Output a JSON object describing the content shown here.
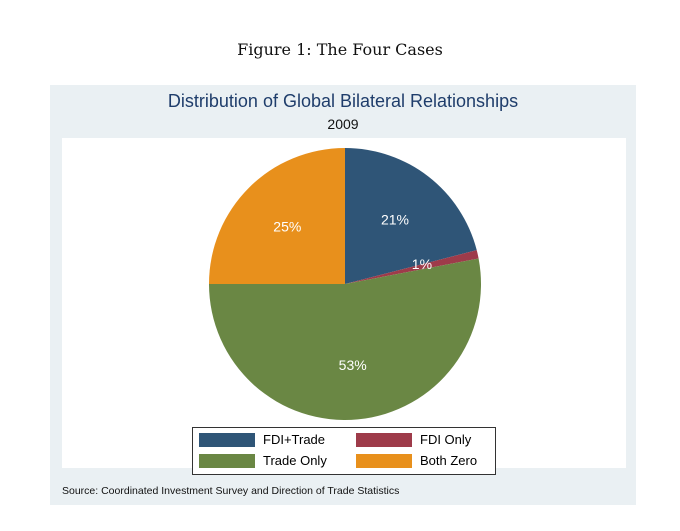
{
  "figure_caption": "Figure 1: The Four Cases",
  "chart_data": {
    "type": "pie",
    "title": "Distribution of Global Bilateral Relationships",
    "subtitle": "2009",
    "slices": [
      {
        "label": "FDI+Trade",
        "value": 21,
        "display": "21%",
        "color": "#2f5577"
      },
      {
        "label": "FDI Only",
        "value": 1,
        "display": "1%",
        "color": "#9e3b4a"
      },
      {
        "label": "Trade Only",
        "value": 53,
        "display": "53%",
        "color": "#6a8744"
      },
      {
        "label": "Both Zero",
        "value": 25,
        "display": "25%",
        "color": "#e8901c"
      }
    ],
    "start_angle_deg": 90,
    "direction": "clockwise",
    "legend_placement": "bottom",
    "note": "Source: Coordinated Investment Survey and Direction of Trade Statistics"
  },
  "colors": {
    "panel_background": "#eaf0f3",
    "title_color": "#1f3d6b"
  }
}
